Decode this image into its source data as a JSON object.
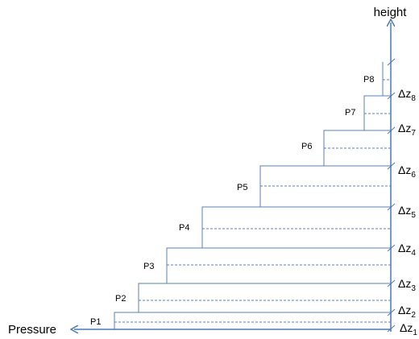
{
  "axes": {
    "y_label": "height",
    "x_label": "Pressure"
  },
  "pressure_labels": [
    "P1",
    "P2",
    "P3",
    "P4",
    "P5",
    "P6",
    "P7",
    "P8"
  ],
  "dz_labels": [
    {
      "base": "Δz",
      "sub": "1"
    },
    {
      "base": "Δz",
      "sub": "2"
    },
    {
      "base": "Δz",
      "sub": "3"
    },
    {
      "base": "Δz",
      "sub": "4"
    },
    {
      "base": "Δz",
      "sub": "5"
    },
    {
      "base": "Δz",
      "sub": "6"
    },
    {
      "base": "Δz",
      "sub": "7"
    },
    {
      "base": "Δz",
      "sub": "8"
    }
  ],
  "colors": {
    "line": "#4a78b5",
    "text": "#000000"
  }
}
